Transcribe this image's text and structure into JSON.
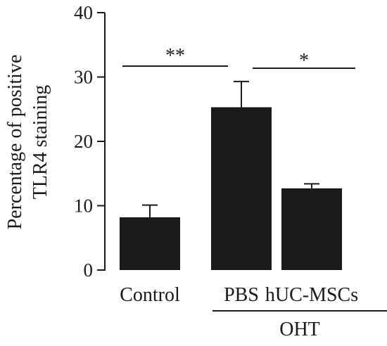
{
  "chart_data": {
    "type": "bar",
    "title": "",
    "xlabel": "",
    "ylabel_lines": [
      "Percentage of positive",
      "TLR4 staining"
    ],
    "ylim": [
      0,
      40
    ],
    "yticks": [
      0,
      10,
      20,
      30,
      40
    ],
    "categories": [
      "Control",
      "PBS",
      "hUC-MSCs"
    ],
    "values": [
      8.2,
      25.3,
      12.7
    ],
    "errors": [
      1.9,
      4.0,
      0.7
    ],
    "group_label": "OHT",
    "group_members": [
      "PBS",
      "hUC-MSCs"
    ],
    "significance": [
      {
        "from": "Control",
        "to": "PBS",
        "label": "**"
      },
      {
        "from": "PBS",
        "to": "hUC-MSCs",
        "label": "*"
      }
    ],
    "bar_color": "#1a1a1a"
  }
}
